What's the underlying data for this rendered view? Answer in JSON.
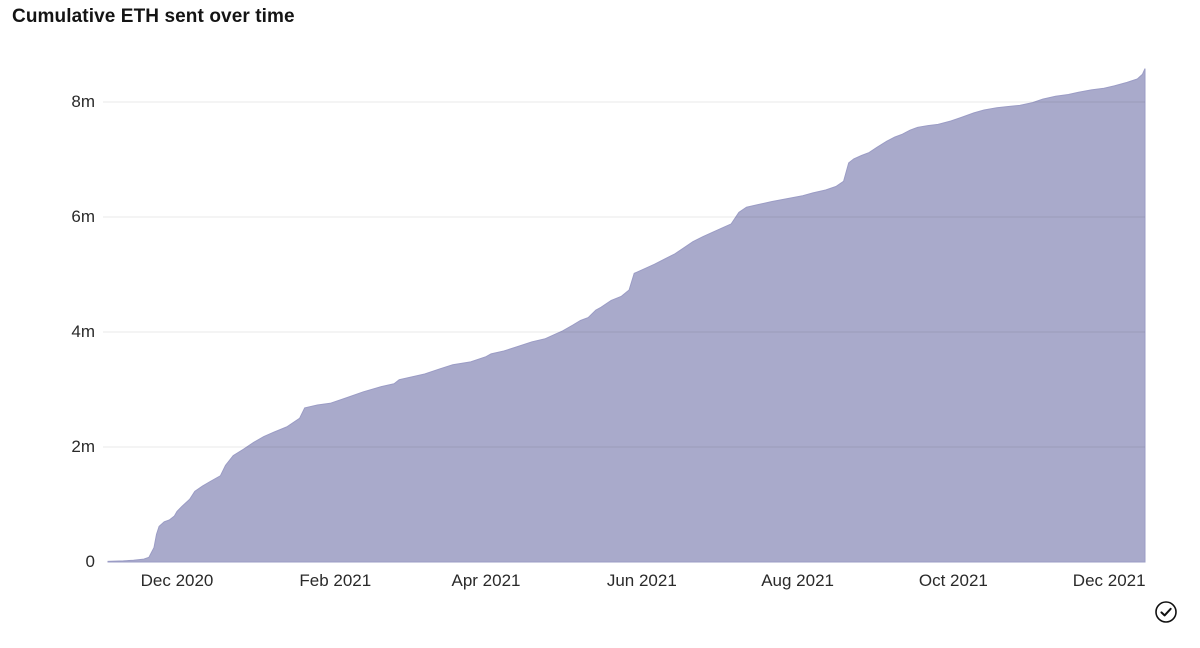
{
  "page": {
    "background": "#ffffff"
  },
  "chart_data": {
    "type": "area",
    "title": "Cumulative ETH sent over time",
    "xlabel": "",
    "ylabel": "",
    "legend": "none",
    "grid": "horizontal",
    "x_domain": {
      "start": "2020-11-04",
      "end": "2021-12-15"
    },
    "ylim": [
      0,
      8.7
    ],
    "y_ticks": [
      {
        "value": 0,
        "label": "0"
      },
      {
        "value": 2,
        "label": "2m"
      },
      {
        "value": 4,
        "label": "4m"
      },
      {
        "value": 6,
        "label": "6m"
      },
      {
        "value": 8,
        "label": "8m"
      }
    ],
    "x_ticks": [
      {
        "date": "2020-12-01",
        "label": "Dec 2020"
      },
      {
        "date": "2021-02-01",
        "label": "Feb 2021"
      },
      {
        "date": "2021-04-01",
        "label": "Apr 2021"
      },
      {
        "date": "2021-06-01",
        "label": "Jun 2021"
      },
      {
        "date": "2021-08-01",
        "label": "Aug 2021"
      },
      {
        "date": "2021-10-01",
        "label": "Oct 2021"
      },
      {
        "date": "2021-12-01",
        "label": "Dec 2021"
      }
    ],
    "colors": {
      "fill": "#a9aacb",
      "edge": "#9b9cc5",
      "grid": "rgba(20,20,20,0.09)",
      "tick_text": "#2a2a2a",
      "title_text": "#141414"
    },
    "series": [
      {
        "name": "Cumulative ETH sent",
        "unit": "ETH (millions)",
        "points": [
          [
            "2020-11-04",
            0.01
          ],
          [
            "2020-11-10",
            0.02
          ],
          [
            "2020-11-14",
            0.03
          ],
          [
            "2020-11-18",
            0.05
          ],
          [
            "2020-11-20",
            0.08
          ],
          [
            "2020-11-22",
            0.25
          ],
          [
            "2020-11-23",
            0.48
          ],
          [
            "2020-11-24",
            0.62
          ],
          [
            "2020-11-26",
            0.7
          ],
          [
            "2020-11-28",
            0.73
          ],
          [
            "2020-11-30",
            0.8
          ],
          [
            "2020-12-01",
            0.88
          ],
          [
            "2020-12-03",
            0.97
          ],
          [
            "2020-12-06",
            1.09
          ],
          [
            "2020-12-08",
            1.23
          ],
          [
            "2020-12-11",
            1.32
          ],
          [
            "2020-12-14",
            1.4
          ],
          [
            "2020-12-18",
            1.5
          ],
          [
            "2020-12-20",
            1.68
          ],
          [
            "2020-12-23",
            1.85
          ],
          [
            "2020-12-27",
            1.96
          ],
          [
            "2020-12-31",
            2.08
          ],
          [
            "2021-01-04",
            2.18
          ],
          [
            "2021-01-08",
            2.26
          ],
          [
            "2021-01-13",
            2.35
          ],
          [
            "2021-01-18",
            2.5
          ],
          [
            "2021-01-20",
            2.68
          ],
          [
            "2021-01-25",
            2.73
          ],
          [
            "2021-01-30",
            2.76
          ],
          [
            "2021-02-05",
            2.85
          ],
          [
            "2021-02-12",
            2.96
          ],
          [
            "2021-02-19",
            3.05
          ],
          [
            "2021-02-24",
            3.1
          ],
          [
            "2021-02-26",
            3.17
          ],
          [
            "2021-03-03",
            3.22
          ],
          [
            "2021-03-08",
            3.27
          ],
          [
            "2021-03-14",
            3.36
          ],
          [
            "2021-03-19",
            3.43
          ],
          [
            "2021-03-26",
            3.48
          ],
          [
            "2021-04-01",
            3.57
          ],
          [
            "2021-04-03",
            3.62
          ],
          [
            "2021-04-08",
            3.67
          ],
          [
            "2021-04-13",
            3.74
          ],
          [
            "2021-04-19",
            3.83
          ],
          [
            "2021-04-24",
            3.88
          ],
          [
            "2021-04-28",
            3.96
          ],
          [
            "2021-05-01",
            4.02
          ],
          [
            "2021-05-05",
            4.12
          ],
          [
            "2021-05-08",
            4.2
          ],
          [
            "2021-05-11",
            4.25
          ],
          [
            "2021-05-14",
            4.38
          ],
          [
            "2021-05-16",
            4.43
          ],
          [
            "2021-05-20",
            4.55
          ],
          [
            "2021-05-24",
            4.62
          ],
          [
            "2021-05-27",
            4.73
          ],
          [
            "2021-05-29",
            5.02
          ],
          [
            "2021-06-02",
            5.1
          ],
          [
            "2021-06-06",
            5.18
          ],
          [
            "2021-06-10",
            5.27
          ],
          [
            "2021-06-14",
            5.36
          ],
          [
            "2021-06-18",
            5.48
          ],
          [
            "2021-06-21",
            5.57
          ],
          [
            "2021-06-25",
            5.66
          ],
          [
            "2021-06-29",
            5.74
          ],
          [
            "2021-07-03",
            5.82
          ],
          [
            "2021-07-06",
            5.88
          ],
          [
            "2021-07-09",
            6.08
          ],
          [
            "2021-07-12",
            6.17
          ],
          [
            "2021-07-16",
            6.21
          ],
          [
            "2021-07-22",
            6.27
          ],
          [
            "2021-07-28",
            6.32
          ],
          [
            "2021-08-03",
            6.37
          ],
          [
            "2021-08-07",
            6.42
          ],
          [
            "2021-08-12",
            6.47
          ],
          [
            "2021-08-16",
            6.53
          ],
          [
            "2021-08-19",
            6.62
          ],
          [
            "2021-08-21",
            6.94
          ],
          [
            "2021-08-23",
            7.01
          ],
          [
            "2021-08-26",
            7.07
          ],
          [
            "2021-08-29",
            7.12
          ],
          [
            "2021-09-01",
            7.21
          ],
          [
            "2021-09-05",
            7.32
          ],
          [
            "2021-09-08",
            7.39
          ],
          [
            "2021-09-11",
            7.44
          ],
          [
            "2021-09-14",
            7.51
          ],
          [
            "2021-09-17",
            7.56
          ],
          [
            "2021-09-21",
            7.59
          ],
          [
            "2021-09-25",
            7.61
          ],
          [
            "2021-09-30",
            7.67
          ],
          [
            "2021-10-04",
            7.73
          ],
          [
            "2021-10-09",
            7.81
          ],
          [
            "2021-10-13",
            7.86
          ],
          [
            "2021-10-18",
            7.9
          ],
          [
            "2021-10-22",
            7.92
          ],
          [
            "2021-10-27",
            7.94
          ],
          [
            "2021-11-01",
            7.99
          ],
          [
            "2021-11-05",
            8.05
          ],
          [
            "2021-11-10",
            8.1
          ],
          [
            "2021-11-15",
            8.13
          ],
          [
            "2021-11-19",
            8.17
          ],
          [
            "2021-11-24",
            8.21
          ],
          [
            "2021-11-29",
            8.24
          ],
          [
            "2021-12-03",
            8.28
          ],
          [
            "2021-12-08",
            8.34
          ],
          [
            "2021-12-12",
            8.4
          ],
          [
            "2021-12-14",
            8.48
          ],
          [
            "2021-12-15",
            8.58
          ]
        ]
      }
    ]
  },
  "footer": {
    "status_icon": "check-circle-icon"
  }
}
